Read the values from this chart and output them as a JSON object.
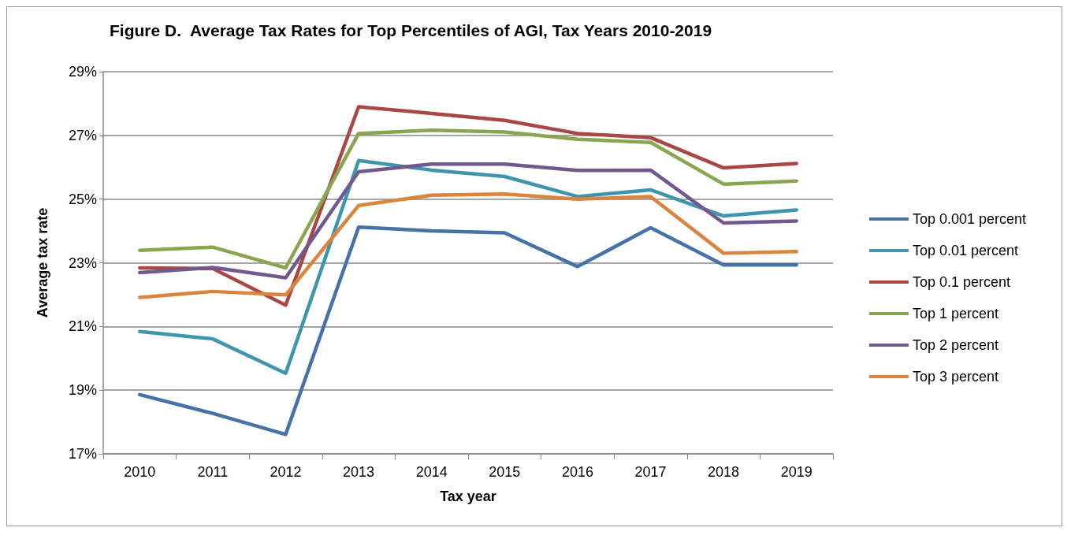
{
  "chart_data": {
    "type": "line",
    "title": "Figure D.  Average Tax Rates for Top Percentiles of AGI, Tax Years 2010-2019",
    "xlabel": "Tax year",
    "ylabel": "Average tax rate",
    "categories": [
      "2010",
      "2011",
      "2012",
      "2013",
      "2014",
      "2015",
      "2016",
      "2017",
      "2018",
      "2019"
    ],
    "series": [
      {
        "name": "Top 0.001 percent",
        "color": "#4572a7",
        "values": [
          18.86,
          18.27,
          17.61,
          24.12,
          24.0,
          23.94,
          22.88,
          24.1,
          22.93,
          22.93
        ]
      },
      {
        "name": "Top 0.01 percent",
        "color": "#3e96ae",
        "values": [
          20.84,
          20.61,
          19.53,
          26.21,
          25.91,
          25.71,
          25.08,
          25.29,
          24.47,
          24.66
        ]
      },
      {
        "name": "Top 0.1 percent",
        "color": "#aa4643",
        "values": [
          22.84,
          22.82,
          21.67,
          27.9,
          27.69,
          27.47,
          27.06,
          26.93,
          25.98,
          26.12
        ]
      },
      {
        "name": "Top 1 percent",
        "color": "#89a54e",
        "values": [
          23.39,
          23.49,
          22.84,
          27.06,
          27.16,
          27.11,
          26.88,
          26.78,
          25.47,
          25.57
        ]
      },
      {
        "name": "Top 2 percent",
        "color": "#71588f",
        "values": [
          22.69,
          22.85,
          22.53,
          25.86,
          26.1,
          26.1,
          25.9,
          25.91,
          24.25,
          24.31
        ]
      },
      {
        "name": "Top 3 percent",
        "color": "#db843d",
        "values": [
          21.91,
          22.1,
          21.99,
          24.8,
          25.12,
          25.16,
          25.0,
          25.08,
          23.3,
          23.35
        ]
      }
    ],
    "ylim": [
      17,
      29
    ],
    "yticks": [
      {
        "value": 17,
        "label": "17%"
      },
      {
        "value": 19,
        "label": "19%"
      },
      {
        "value": 21,
        "label": "21%"
      },
      {
        "value": 23,
        "label": "23%"
      },
      {
        "value": 25,
        "label": "25%"
      },
      {
        "value": 27,
        "label": "27%"
      },
      {
        "value": 29,
        "label": "29%"
      }
    ],
    "grid": "y",
    "legend": "right",
    "marker": "none",
    "line_style": "solid"
  }
}
